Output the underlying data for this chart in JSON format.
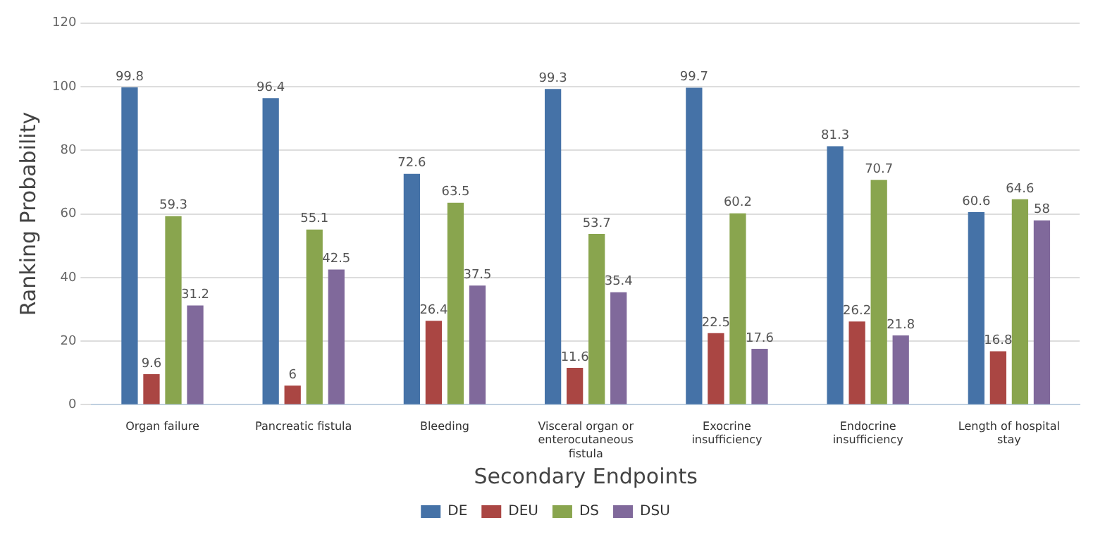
{
  "chart_data": {
    "type": "bar",
    "xlabel": "Secondary Endpoints",
    "ylabel": "Ranking Probability",
    "categories": [
      "Organ failure",
      "Pancreatic fistula",
      "Bleeding",
      "Visceral organ or enterocutaneous fistula",
      "Exocrine insufficiency",
      "Endocrine insufficiency",
      "Length of hospital stay"
    ],
    "series": [
      {
        "name": "DE",
        "color": "#4572a7",
        "values": [
          99.8,
          96.4,
          72.6,
          99.3,
          99.7,
          81.3,
          60.6
        ]
      },
      {
        "name": "DEU",
        "color": "#aa4643",
        "values": [
          9.6,
          6,
          26.4,
          11.6,
          22.5,
          26.2,
          16.8
        ]
      },
      {
        "name": "DS",
        "color": "#89a54e",
        "values": [
          59.3,
          55.1,
          63.5,
          53.7,
          60.2,
          70.7,
          64.6
        ]
      },
      {
        "name": "DSU",
        "color": "#80699b",
        "values": [
          31.2,
          42.5,
          37.5,
          35.4,
          17.6,
          21.8,
          58
        ]
      }
    ],
    "ylim": [
      0,
      120
    ],
    "yticks": [
      0,
      20,
      40,
      60,
      80,
      100,
      120
    ],
    "grid": "y",
    "legend": "bottom",
    "data_labels": true
  }
}
